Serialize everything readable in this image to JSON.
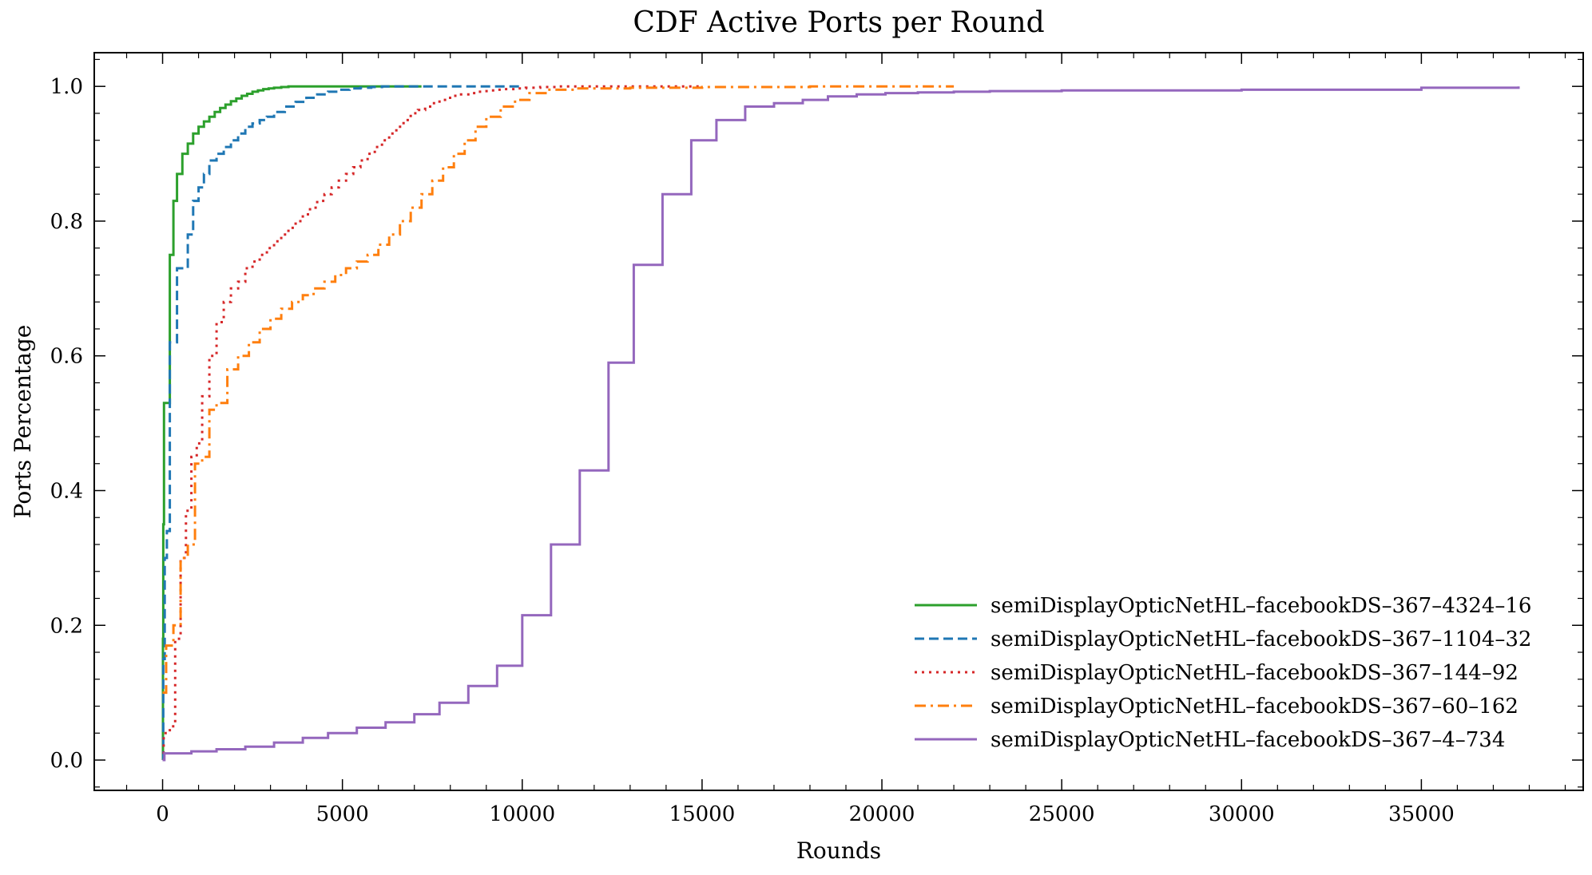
{
  "chart_data": {
    "type": "line",
    "title": "CDF Active Ports per Round",
    "xlabel": "Rounds",
    "ylabel": "Ports Percentage",
    "xlim": [
      -1900,
      39500
    ],
    "ylim": [
      -0.045,
      1.05
    ],
    "xticks": [
      0,
      5000,
      10000,
      15000,
      20000,
      25000,
      30000,
      35000
    ],
    "yticks": [
      0.0,
      0.2,
      0.4,
      0.6,
      0.8,
      1.0
    ],
    "xtick_labels": [
      "0",
      "5000",
      "10000",
      "15000",
      "20000",
      "25000",
      "30000",
      "35000"
    ],
    "ytick_labels": [
      "0.0",
      "0.2",
      "0.4",
      "0.6",
      "0.8",
      "1.0"
    ],
    "step": "post",
    "grid": false,
    "legend_position": "lower-right",
    "series": [
      {
        "name": "semiDisplayOpticNetHL–facebookDS–367–4324–16",
        "color": "#2ca02c",
        "dash": "solid",
        "x": [
          0,
          10,
          20,
          40,
          60,
          80,
          120,
          200,
          300,
          400,
          550,
          700,
          850,
          1000,
          1150,
          1300,
          1450,
          1600,
          1750,
          1900,
          2050,
          2200,
          2350,
          2500,
          2650,
          2800,
          2950,
          3100,
          3300,
          3500,
          4500,
          6000,
          7200
        ],
        "y": [
          0.0,
          0.18,
          0.35,
          0.53,
          0.53,
          0.53,
          0.53,
          0.75,
          0.83,
          0.87,
          0.9,
          0.915,
          0.93,
          0.94,
          0.948,
          0.955,
          0.962,
          0.968,
          0.973,
          0.978,
          0.982,
          0.986,
          0.989,
          0.992,
          0.994,
          0.996,
          0.997,
          0.998,
          0.999,
          1.0,
          1.0,
          1.0,
          1.0
        ]
      },
      {
        "name": "semiDisplayOpticNetHL–facebookDS–367–1104–32",
        "color": "#1f77b4",
        "dash": "dashed",
        "x": [
          0,
          20,
          60,
          120,
          200,
          300,
          400,
          550,
          700,
          850,
          1000,
          1150,
          1300,
          1500,
          1700,
          1900,
          2100,
          2300,
          2500,
          2700,
          2900,
          3100,
          3400,
          3700,
          4000,
          4300,
          4600,
          4900,
          5200,
          5500,
          5800,
          6100,
          6400,
          7000,
          8000,
          9000,
          10000
        ],
        "y": [
          0.0,
          0.15,
          0.3,
          0.34,
          0.62,
          0.62,
          0.73,
          0.73,
          0.78,
          0.83,
          0.85,
          0.87,
          0.89,
          0.9,
          0.91,
          0.92,
          0.93,
          0.94,
          0.945,
          0.95,
          0.955,
          0.962,
          0.97,
          0.977,
          0.983,
          0.988,
          0.992,
          0.995,
          0.997,
          0.998,
          0.999,
          1.0,
          1.0,
          1.0,
          1.0,
          1.0,
          1.0
        ]
      },
      {
        "name": "semiDisplayOpticNetHL–facebookDS–367–144–92",
        "color": "#d62728",
        "dash": "dotted",
        "x": [
          0,
          30,
          200,
          350,
          500,
          650,
          800,
          950,
          1100,
          1300,
          1500,
          1700,
          1900,
          2100,
          2300,
          2500,
          2700,
          2900,
          3100,
          3300,
          3500,
          3700,
          3900,
          4100,
          4300,
          4500,
          4700,
          4900,
          5100,
          5300,
          5500,
          5700,
          5900,
          6100,
          6300,
          6500,
          6700,
          6900,
          7100,
          7300,
          7500,
          7700,
          7900,
          8100,
          8300,
          8500,
          8700,
          8900,
          9100,
          9300,
          9500,
          9800,
          10100,
          10500,
          11000,
          12000,
          13000,
          14000,
          15000
        ],
        "y": [
          0.0,
          0.04,
          0.05,
          0.18,
          0.3,
          0.37,
          0.45,
          0.47,
          0.54,
          0.6,
          0.65,
          0.68,
          0.7,
          0.71,
          0.73,
          0.74,
          0.75,
          0.76,
          0.77,
          0.78,
          0.79,
          0.8,
          0.81,
          0.82,
          0.83,
          0.84,
          0.85,
          0.86,
          0.87,
          0.88,
          0.89,
          0.9,
          0.91,
          0.92,
          0.93,
          0.94,
          0.95,
          0.96,
          0.965,
          0.97,
          0.975,
          0.98,
          0.983,
          0.986,
          0.988,
          0.99,
          0.992,
          0.993,
          0.994,
          0.995,
          0.996,
          0.997,
          0.998,
          0.999,
          1.0,
          1.0,
          1.0,
          1.0,
          1.0
        ]
      },
      {
        "name": "semiDisplayOpticNetHL–facebookDS–367–60–162",
        "color": "#ff7f0e",
        "dash": "dashdot",
        "x": [
          0,
          100,
          300,
          500,
          700,
          900,
          1100,
          1300,
          1500,
          1800,
          2100,
          2400,
          2700,
          3000,
          3300,
          3600,
          3900,
          4200,
          4500,
          4800,
          5100,
          5400,
          5700,
          6000,
          6300,
          6600,
          6900,
          7200,
          7500,
          7800,
          8100,
          8400,
          8700,
          9000,
          9400,
          9800,
          10200,
          10700,
          11500,
          13000,
          15000,
          18000,
          20000,
          22000
        ],
        "y": [
          0.1,
          0.17,
          0.2,
          0.3,
          0.32,
          0.44,
          0.45,
          0.52,
          0.53,
          0.58,
          0.6,
          0.62,
          0.64,
          0.655,
          0.67,
          0.68,
          0.69,
          0.7,
          0.71,
          0.72,
          0.73,
          0.74,
          0.75,
          0.765,
          0.78,
          0.8,
          0.82,
          0.84,
          0.86,
          0.88,
          0.9,
          0.92,
          0.94,
          0.955,
          0.97,
          0.98,
          0.99,
          0.995,
          0.997,
          0.998,
          0.999,
          1.0,
          1.0,
          1.0
        ]
      },
      {
        "name": "semiDisplayOpticNetHL–facebookDS–367–4–734",
        "color": "#9467bd",
        "dash": "solid",
        "x": [
          0,
          50,
          800,
          1500,
          2300,
          3100,
          3900,
          4600,
          5400,
          6200,
          7000,
          7700,
          8500,
          9300,
          10000,
          10800,
          11600,
          12400,
          13100,
          13900,
          14700,
          15400,
          16200,
          17000,
          17800,
          18500,
          19300,
          20100,
          21000,
          22000,
          23000,
          25000,
          30000,
          35000,
          37700
        ],
        "y": [
          0.0,
          0.01,
          0.013,
          0.016,
          0.02,
          0.026,
          0.033,
          0.04,
          0.048,
          0.056,
          0.068,
          0.085,
          0.11,
          0.14,
          0.215,
          0.32,
          0.43,
          0.59,
          0.735,
          0.84,
          0.92,
          0.95,
          0.97,
          0.975,
          0.98,
          0.985,
          0.988,
          0.99,
          0.991,
          0.992,
          0.993,
          0.994,
          0.995,
          0.998,
          1.0
        ]
      }
    ]
  }
}
